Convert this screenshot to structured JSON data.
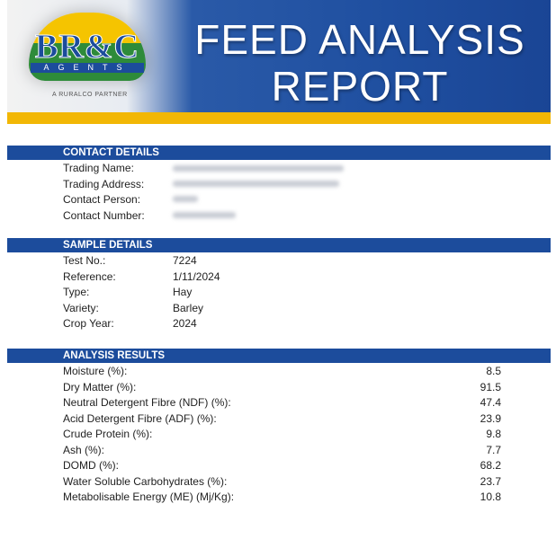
{
  "header": {
    "logo": "BR&C",
    "logo_sub": "AGENTS",
    "tagline": "A RURALCO PARTNER",
    "title_lines": [
      "FEED ANALYSIS",
      "REPORT"
    ]
  },
  "contact": {
    "heading": "CONTACT DETAILS",
    "labels": [
      "Trading Name:",
      "Trading Address:",
      "Contact Person:",
      "Contact Number:"
    ]
  },
  "sample": {
    "heading": "SAMPLE DETAILS",
    "rows": [
      [
        "Test No.:",
        "7224"
      ],
      [
        "Reference:",
        "1/11/2024"
      ],
      [
        "Type:",
        "Hay"
      ],
      [
        "Variety:",
        "Barley"
      ],
      [
        "Crop Year:",
        "2024"
      ]
    ]
  },
  "analysis": {
    "heading": "ANALYSIS RESULTS",
    "rows": [
      [
        "Moisture (%):",
        8.5
      ],
      [
        "Dry Matter (%):",
        91.5
      ],
      [
        "Neutral Detergent Fibre (NDF) (%):",
        47.4
      ],
      [
        "Acid Detergent Fibre (ADF) (%):",
        23.9
      ],
      [
        "Crude Protein (%):",
        9.8
      ],
      [
        "Ash (%):",
        7.7
      ],
      [
        "DOMD (%):",
        68.2
      ],
      [
        "Water Soluble Carbohydrates (%):",
        23.7
      ],
      [
        "Metabolisable Energy (ME) (Mj/Kg):",
        10.8
      ]
    ]
  }
}
